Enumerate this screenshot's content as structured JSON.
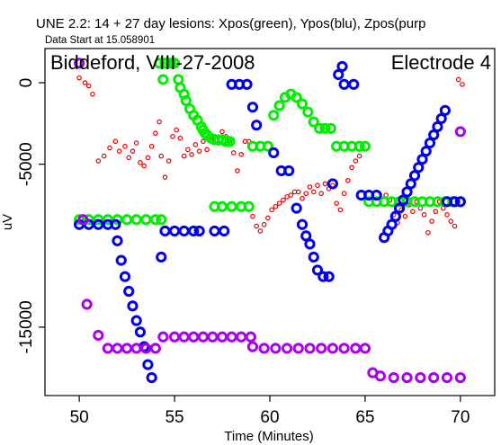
{
  "chart_data": {
    "type": "scatter",
    "title": "UNE 2.2: 14 + 27 day lesions: Xpos(green), Ypos(blu), Zpos(purp",
    "subtitle": "Data Start at 15.058901",
    "annotation_left": "Biddeford, VIII-27-2008",
    "annotation_right": "Electrode 4",
    "xlabel": "Time (Minutes)",
    "ylabel": "uV",
    "xlim": [
      48.2,
      71.8
    ],
    "ylim": [
      -19200,
      2100
    ],
    "xticks": [
      50,
      55,
      60,
      65,
      70
    ],
    "xtick_labels": [
      "50",
      "55",
      "60",
      "65",
      "70"
    ],
    "yticks": [
      0,
      -5000,
      -15000
    ],
    "ytick_labels": [
      "0",
      "-5000",
      "-15000"
    ],
    "grid": false,
    "legend": "none (series identified in title)",
    "series": [
      {
        "color": "#00ee00",
        "marker": "ring",
        "points": [
          [
            50,
            -8400
          ],
          [
            50.5,
            -8400
          ],
          [
            51,
            -8400
          ],
          [
            51.5,
            -8400
          ],
          [
            52,
            -8400
          ],
          [
            52.5,
            -8400
          ],
          [
            53,
            -8400
          ],
          [
            53.5,
            -8400
          ],
          [
            54,
            -8400
          ],
          [
            54.3,
            -8400
          ],
          [
            54.2,
            1200
          ],
          [
            54.5,
            1200
          ],
          [
            54.4,
            200
          ],
          [
            54.8,
            1200
          ],
          [
            55,
            1200
          ],
          [
            55.2,
            200
          ],
          [
            55.3,
            -300
          ],
          [
            55.5,
            -700
          ],
          [
            55.6,
            -1100
          ],
          [
            55.8,
            -1600
          ],
          [
            56,
            -2000
          ],
          [
            56.2,
            -2300
          ],
          [
            56.4,
            -2700
          ],
          [
            56.5,
            -2900
          ],
          [
            56.6,
            -3100
          ],
          [
            56.7,
            -3200
          ],
          [
            56.9,
            -3400
          ],
          [
            57.1,
            -3500
          ],
          [
            57.3,
            -3500
          ],
          [
            57.5,
            -3500
          ],
          [
            57.7,
            -3600
          ],
          [
            57.9,
            -3600
          ],
          [
            57.1,
            -7600
          ],
          [
            57.5,
            -7600
          ],
          [
            58,
            -7600
          ],
          [
            58.5,
            -7600
          ],
          [
            58.9,
            -7600
          ],
          [
            59.1,
            -3900
          ],
          [
            59.5,
            -3900
          ],
          [
            59.9,
            -3900
          ],
          [
            60.2,
            -2000
          ],
          [
            60.5,
            -1400
          ],
          [
            60.8,
            -900
          ],
          [
            61.1,
            -700
          ],
          [
            61.4,
            -900
          ],
          [
            61.7,
            -1300
          ],
          [
            62,
            -1800
          ],
          [
            62.3,
            -2400
          ],
          [
            62.6,
            -2800
          ],
          [
            62.9,
            -2800
          ],
          [
            63.2,
            -2800
          ],
          [
            63.5,
            -3900
          ],
          [
            63.9,
            -3900
          ],
          [
            64.3,
            -3900
          ],
          [
            64.7,
            -3900
          ],
          [
            65,
            -3900
          ],
          [
            65.2,
            -7300
          ],
          [
            65.6,
            -7300
          ],
          [
            66,
            -7300
          ],
          [
            66.4,
            -7300
          ],
          [
            66.8,
            -7300
          ],
          [
            67.2,
            -7300
          ],
          [
            67.6,
            -7300
          ],
          [
            68,
            -7300
          ],
          [
            68.4,
            -7300
          ],
          [
            68.8,
            -7300
          ],
          [
            69.2,
            -7300
          ],
          [
            69.6,
            -7300
          ],
          [
            70,
            -7300
          ]
        ]
      },
      {
        "color": "#0000ee",
        "marker": "ring",
        "points": [
          [
            50,
            -8700
          ],
          [
            50.5,
            -8700
          ],
          [
            51,
            -8700
          ],
          [
            51.5,
            -8700
          ],
          [
            51.9,
            -8700
          ],
          [
            52,
            -9700
          ],
          [
            52.2,
            -10900
          ],
          [
            52.4,
            -11900
          ],
          [
            52.6,
            -12800
          ],
          [
            52.8,
            -13700
          ],
          [
            53,
            -14600
          ],
          [
            53.2,
            -15300
          ],
          [
            53.4,
            -16200
          ],
          [
            53.6,
            -17300
          ],
          [
            53.8,
            -18100
          ],
          [
            54.3,
            -10700
          ],
          [
            54.5,
            -9100
          ],
          [
            55,
            -9100
          ],
          [
            55.5,
            -9100
          ],
          [
            56,
            -9100
          ],
          [
            56.3,
            -9100
          ],
          [
            57.1,
            -9100
          ],
          [
            57.6,
            -9100
          ],
          [
            58,
            -100
          ],
          [
            58.4,
            -100
          ],
          [
            58.8,
            -100
          ],
          [
            59.1,
            -1500
          ],
          [
            59.3,
            -2600
          ],
          [
            60.2,
            -4300
          ],
          [
            60.6,
            -5400
          ],
          [
            61,
            -5400
          ],
          [
            61.4,
            -7700
          ],
          [
            61.7,
            -8700
          ],
          [
            61.9,
            -9400
          ],
          [
            62.1,
            -9900
          ],
          [
            62.3,
            -10700
          ],
          [
            62.5,
            -11500
          ],
          [
            62.8,
            -11900
          ],
          [
            63.1,
            -11900
          ],
          [
            63.3,
            -6200
          ],
          [
            63.6,
            500
          ],
          [
            63.8,
            1000
          ],
          [
            63.9,
            -100
          ],
          [
            64.4,
            -100
          ],
          [
            64.8,
            -6900
          ],
          [
            65.2,
            -6900
          ],
          [
            65.6,
            -6900
          ],
          [
            66,
            -9500
          ],
          [
            66.2,
            -9100
          ],
          [
            66.4,
            -8700
          ],
          [
            66.6,
            -8200
          ],
          [
            66.8,
            -7700
          ],
          [
            67,
            -7200
          ],
          [
            67.2,
            -6700
          ],
          [
            67.4,
            -6200
          ],
          [
            67.6,
            -5700
          ],
          [
            67.8,
            -5200
          ],
          [
            68,
            -4700
          ],
          [
            68.2,
            -4200
          ],
          [
            68.4,
            -3700
          ],
          [
            68.6,
            -3200
          ],
          [
            68.8,
            -2700
          ],
          [
            69,
            -2200
          ],
          [
            69.2,
            -1700
          ],
          [
            69.3,
            -7300
          ],
          [
            69.7,
            -7300
          ],
          [
            70,
            -7300
          ]
        ]
      },
      {
        "color": "#aa00ee",
        "marker": "ring",
        "points": [
          [
            50,
            1200
          ],
          [
            50.2,
            -8400
          ],
          [
            50.4,
            -13600
          ],
          [
            51,
            -15500
          ],
          [
            51.5,
            -16300
          ],
          [
            52,
            -16300
          ],
          [
            52.5,
            -16300
          ],
          [
            53,
            -16300
          ],
          [
            53.5,
            -16300
          ],
          [
            54,
            -16300
          ],
          [
            54.4,
            -15600
          ],
          [
            55,
            -15600
          ],
          [
            55.5,
            -15600
          ],
          [
            56,
            -15600
          ],
          [
            56.5,
            -15600
          ],
          [
            57,
            -15600
          ],
          [
            57.5,
            -15600
          ],
          [
            58,
            -15600
          ],
          [
            58.5,
            -15600
          ],
          [
            59,
            -15600
          ],
          [
            59.1,
            -16200
          ],
          [
            59.7,
            -16300
          ],
          [
            60.3,
            -16300
          ],
          [
            60.9,
            -16300
          ],
          [
            61.5,
            -16300
          ],
          [
            62.1,
            -16300
          ],
          [
            62.7,
            -16300
          ],
          [
            63.3,
            -16300
          ],
          [
            63.9,
            -16300
          ],
          [
            64.5,
            -16300
          ],
          [
            65,
            -16300
          ],
          [
            65.4,
            -17800
          ],
          [
            65.8,
            -18000
          ],
          [
            66.5,
            -18100
          ],
          [
            67.2,
            -18100
          ],
          [
            67.9,
            -18100
          ],
          [
            68.6,
            -18100
          ],
          [
            69.3,
            -18100
          ],
          [
            70,
            -18100
          ],
          [
            70,
            -3000
          ]
        ]
      },
      {
        "color": "#ee0000",
        "marker": "small-ring",
        "points": [
          [
            50,
            300
          ],
          [
            50.3,
            0
          ],
          [
            50.5,
            -200
          ],
          [
            50.7,
            -700
          ],
          [
            51,
            -4800
          ],
          [
            51.3,
            -4500
          ],
          [
            51.6,
            -4000
          ],
          [
            51.9,
            -3600
          ],
          [
            52.1,
            -4200
          ],
          [
            52.4,
            -3900
          ],
          [
            52.6,
            -4600
          ],
          [
            52.8,
            -4200
          ],
          [
            53,
            -3700
          ],
          [
            53.2,
            -4900
          ],
          [
            53.4,
            -5100
          ],
          [
            53.6,
            -4600
          ],
          [
            53.8,
            -3900
          ],
          [
            54,
            -3100
          ],
          [
            54.2,
            -2400
          ],
          [
            54.3,
            -4500
          ],
          [
            54.5,
            -5800
          ],
          [
            54.7,
            -4800
          ],
          [
            54.9,
            -3300
          ],
          [
            55.1,
            -2900
          ],
          [
            55.3,
            -3400
          ],
          [
            55.5,
            -4500
          ],
          [
            55.7,
            -4100
          ],
          [
            55.9,
            -4400
          ],
          [
            56.1,
            -3800
          ],
          [
            56.3,
            -4200
          ],
          [
            56.5,
            -3600
          ],
          [
            56.7,
            -4100
          ],
          [
            56.9,
            -3500
          ],
          [
            57.1,
            -3300
          ],
          [
            57.3,
            -3700
          ],
          [
            57.5,
            -3000
          ],
          [
            57.7,
            -3300
          ],
          [
            57.9,
            -3600
          ],
          [
            58.1,
            -4300
          ],
          [
            58.3,
            -5400
          ],
          [
            58.5,
            -4400
          ],
          [
            58.7,
            -3600
          ],
          [
            58.9,
            -3600
          ],
          [
            59.1,
            -8200
          ],
          [
            59.3,
            -8800
          ],
          [
            59.5,
            -9100
          ],
          [
            59.7,
            -8700
          ],
          [
            59.9,
            -8300
          ],
          [
            60.1,
            -7800
          ],
          [
            60.3,
            -7600
          ],
          [
            60.5,
            -7400
          ],
          [
            60.7,
            -7200
          ],
          [
            60.9,
            -7000
          ],
          [
            61.1,
            -6900
          ],
          [
            61.3,
            -6700
          ],
          [
            61.5,
            -6700
          ],
          [
            61.7,
            -7100
          ],
          [
            61.9,
            -6800
          ],
          [
            62.1,
            -6400
          ],
          [
            62.3,
            -6700
          ],
          [
            62.5,
            -6300
          ],
          [
            62.7,
            -6800
          ],
          [
            62.9,
            -6200
          ],
          [
            63.1,
            -6500
          ],
          [
            63.3,
            -6300
          ],
          [
            63.5,
            -7400
          ],
          [
            63.7,
            -7800
          ],
          [
            63.9,
            -6800
          ],
          [
            64.1,
            -6000
          ],
          [
            64.3,
            -5200
          ],
          [
            64.5,
            -4800
          ],
          [
            64.7,
            -4500
          ],
          [
            66.1,
            -6900
          ],
          [
            66.3,
            -7200
          ],
          [
            66.5,
            -8100
          ],
          [
            66.7,
            -8600
          ],
          [
            66.9,
            -7800
          ],
          [
            67.1,
            -8200
          ],
          [
            67.3,
            -7500
          ],
          [
            67.5,
            -7900
          ],
          [
            67.7,
            -7300
          ],
          [
            67.9,
            -7700
          ],
          [
            68.1,
            -8100
          ],
          [
            68.3,
            -9200
          ],
          [
            68.5,
            -8500
          ],
          [
            68.7,
            -7900
          ],
          [
            68.9,
            -7300
          ],
          [
            69.1,
            -7700
          ],
          [
            69.3,
            -8100
          ],
          [
            69.5,
            -8500
          ],
          [
            69.7,
            -8800
          ],
          [
            69.9,
            200
          ],
          [
            70.1,
            -100
          ]
        ]
      }
    ]
  }
}
